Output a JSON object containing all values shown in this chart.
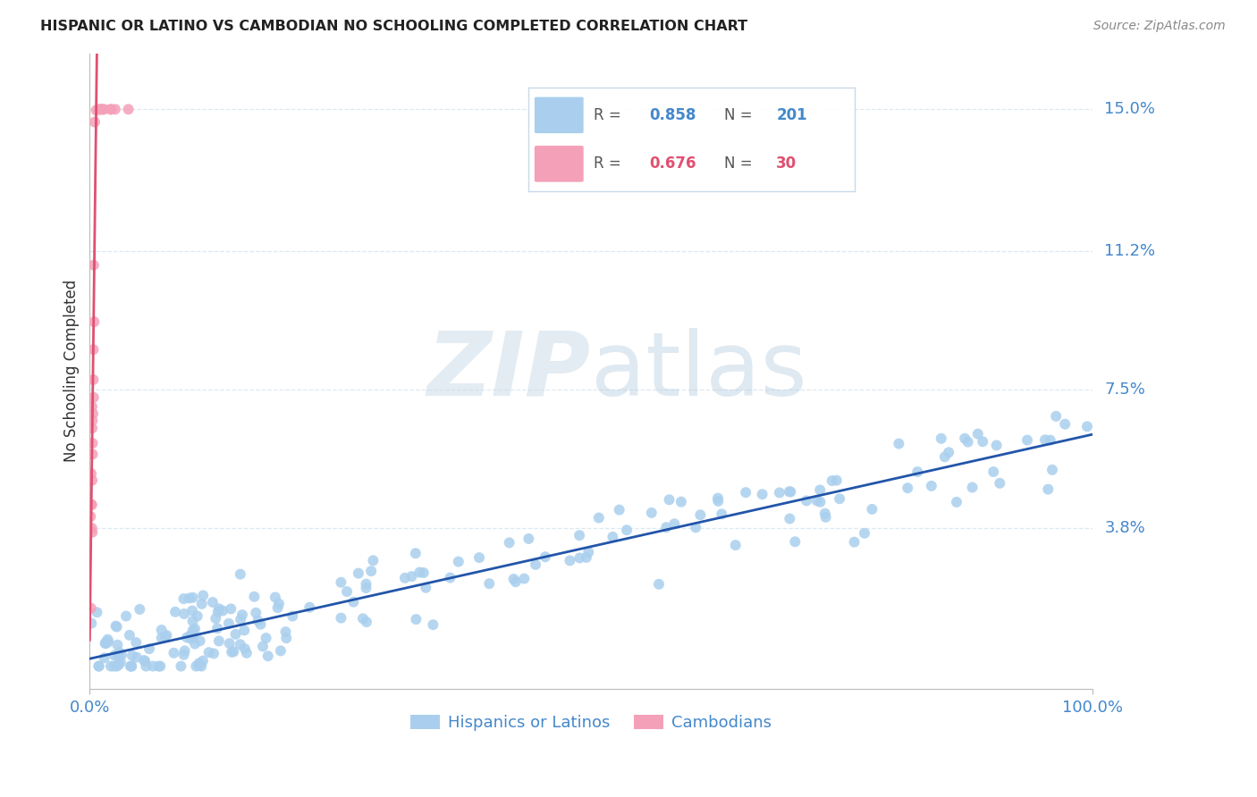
{
  "title": "HISPANIC OR LATINO VS CAMBODIAN NO SCHOOLING COMPLETED CORRELATION CHART",
  "source": "Source: ZipAtlas.com",
  "ylabel": "No Schooling Completed",
  "ytick_labels": [
    "15.0%",
    "11.2%",
    "7.5%",
    "3.8%"
  ],
  "ytick_values": [
    0.15,
    0.112,
    0.075,
    0.038
  ],
  "xlim": [
    0.0,
    1.0
  ],
  "ylim": [
    -0.005,
    0.165
  ],
  "blue_color": "#aacfee",
  "pink_color": "#f4a0b8",
  "blue_line_color": "#2255aa",
  "pink_line_color": "#e05070",
  "pink_dash_color": "#e8a0b0",
  "axis_label_color": "#4488cc",
  "grid_color": "#dde8f0",
  "title_color": "#222222",
  "source_color": "#888888",
  "legend": {
    "blue_R": "0.858",
    "blue_N": "201",
    "pink_R": "0.676",
    "pink_N": "30"
  },
  "blue_slope": 0.06,
  "blue_intercept": 0.003,
  "pink_slope": 22.0,
  "pink_intercept": 0.008
}
